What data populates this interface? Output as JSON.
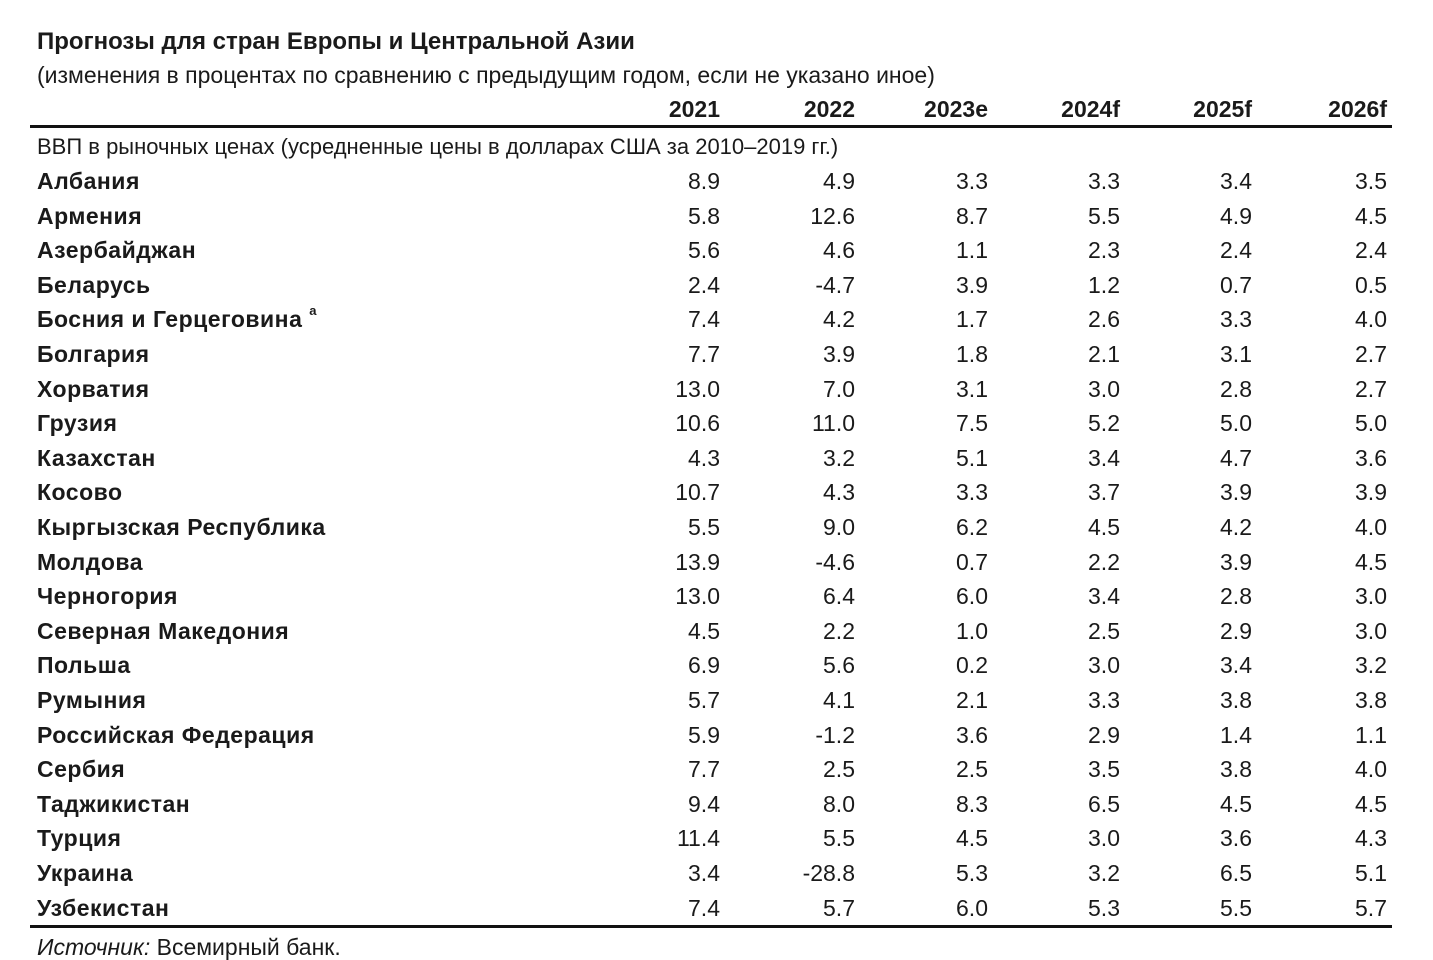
{
  "header": {
    "title": "Прогнозы для стран Европы и Центральной Азии",
    "subtitle": "(изменения в процентах по сравнению с предыдущим годом, если не указано иное)"
  },
  "table": {
    "columns": [
      "2021",
      "2022",
      "2023e",
      "2024f",
      "2025f",
      "2026f"
    ],
    "section": "ВВП в рыночных ценах (усредненные цены в долларах США за 2010–2019 гг.)",
    "rows": [
      {
        "name": "Албания",
        "values": [
          "8.9",
          "4.9",
          "3.3",
          "3.3",
          "3.4",
          "3.5"
        ]
      },
      {
        "name": "Армения",
        "values": [
          "5.8",
          "12.6",
          "8.7",
          "5.5",
          "4.9",
          "4.5"
        ]
      },
      {
        "name": "Азербайджан",
        "values": [
          "5.6",
          "4.6",
          "1.1",
          "2.3",
          "2.4",
          "2.4"
        ]
      },
      {
        "name": "Беларусь",
        "values": [
          "2.4",
          "-4.7",
          "3.9",
          "1.2",
          "0.7",
          "0.5"
        ]
      },
      {
        "name": "Босния и Герцеговина",
        "note": "a",
        "values": [
          "7.4",
          "4.2",
          "1.7",
          "2.6",
          "3.3",
          "4.0"
        ]
      },
      {
        "name": "Болгария",
        "values": [
          "7.7",
          "3.9",
          "1.8",
          "2.1",
          "3.1",
          "2.7"
        ]
      },
      {
        "name": "Хорватия",
        "values": [
          "13.0",
          "7.0",
          "3.1",
          "3.0",
          "2.8",
          "2.7"
        ]
      },
      {
        "name": "Грузия",
        "values": [
          "10.6",
          "11.0",
          "7.5",
          "5.2",
          "5.0",
          "5.0"
        ]
      },
      {
        "name": "Казахстан",
        "values": [
          "4.3",
          "3.2",
          "5.1",
          "3.4",
          "4.7",
          "3.6"
        ]
      },
      {
        "name": "Косово",
        "values": [
          "10.7",
          "4.3",
          "3.3",
          "3.7",
          "3.9",
          "3.9"
        ]
      },
      {
        "name": "Кыргызская Республика",
        "values": [
          "5.5",
          "9.0",
          "6.2",
          "4.5",
          "4.2",
          "4.0"
        ]
      },
      {
        "name": "Молдова",
        "values": [
          "13.9",
          "-4.6",
          "0.7",
          "2.2",
          "3.9",
          "4.5"
        ]
      },
      {
        "name": "Черногория",
        "values": [
          "13.0",
          "6.4",
          "6.0",
          "3.4",
          "2.8",
          "3.0"
        ]
      },
      {
        "name": "Северная Македония",
        "values": [
          "4.5",
          "2.2",
          "1.0",
          "2.5",
          "2.9",
          "3.0"
        ]
      },
      {
        "name": "Польша",
        "values": [
          "6.9",
          "5.6",
          "0.2",
          "3.0",
          "3.4",
          "3.2"
        ]
      },
      {
        "name": "Румыния",
        "values": [
          "5.7",
          "4.1",
          "2.1",
          "3.3",
          "3.8",
          "3.8"
        ]
      },
      {
        "name": "Российская Федерация",
        "values": [
          "5.9",
          "-1.2",
          "3.6",
          "2.9",
          "1.4",
          "1.1"
        ]
      },
      {
        "name": "Сербия",
        "values": [
          "7.7",
          "2.5",
          "2.5",
          "3.5",
          "3.8",
          "4.0"
        ]
      },
      {
        "name": "Таджикистан",
        "values": [
          "9.4",
          "8.0",
          "8.3",
          "6.5",
          "4.5",
          "4.5"
        ]
      },
      {
        "name": "Турция",
        "values": [
          "11.4",
          "5.5",
          "4.5",
          "3.0",
          "3.6",
          "4.3"
        ]
      },
      {
        "name": "Украина",
        "values": [
          "3.4",
          "-28.8",
          "5.3",
          "3.2",
          "6.5",
          "5.1"
        ]
      },
      {
        "name": "Узбекистан",
        "values": [
          "7.4",
          "5.7",
          "6.0",
          "5.3",
          "5.5",
          "5.7"
        ]
      }
    ]
  },
  "source": {
    "label": "Источник:",
    "text": "Всемирный банк."
  }
}
